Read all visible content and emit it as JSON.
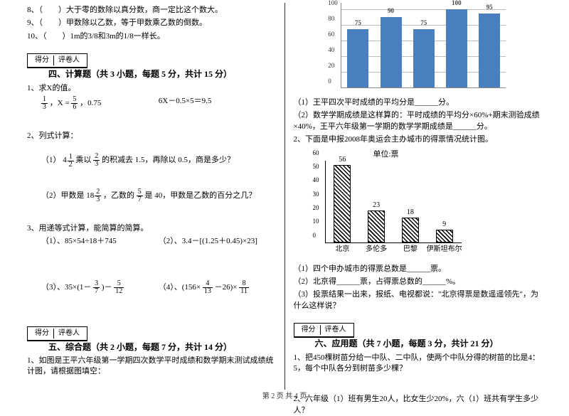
{
  "left": {
    "q8": "8、（　　）大于零的数除以真分数，商一定比这个数大。",
    "q9": "9、（　　）甲数除以乙数，等于甲数乘乙数的倒数。",
    "q10": "10、（　　）1m的3/8和3m的1/8一样长。",
    "sec4_title": "四、计算题（共 3 小题，每题 5 分，共计 15 分）",
    "s4_q1": "1、求X的值。",
    "s4_q1a_pre": "，X =",
    "s4_q1a_post": "，0.75",
    "s4_q1b": "6X－0.5×5＝9.5",
    "s4_q2": "2、列式计算：",
    "s4_q2_1a": "（1）",
    "s4_q2_1b": "乘以",
    "s4_q2_1c": "的积减去 1.5，再除以 0.5，商是多少？",
    "s4_q2_2a": "（2）甲数是",
    "s4_q2_2b": "，乙数的",
    "s4_q2_2c": "是 40，甲数是乙数的百分之几？",
    "s4_q3": "3、用递等式计算，能简算的简算。",
    "s4_q3_1": "（1）、85×54÷18＋745",
    "s4_q3_2": "（2）、3.4－[(1.25＋0.45)×23]",
    "s4_q3_3a": "（3）、35×(1－",
    "s4_q3_3b": ")－",
    "s4_q3_4a": "（4）、(156×",
    "s4_q3_4b": "－26)×",
    "sec5_title": "五、综合题（共 2 小题，每题 7 分，共计 14 分）",
    "s5_q1": "1、如图是王平六年级第一学期四次数学平时成绩和数学期末测试成绩统计图，请根据图填空：",
    "scorebox_a": "得分",
    "scorebox_b": "评卷人"
  },
  "right": {
    "chart1": {
      "values": [
        75,
        90,
        75,
        100,
        95
      ],
      "yticks": [
        0,
        20,
        40,
        60,
        80,
        100
      ],
      "ymax": 100,
      "bar_color": "#4a7fbf",
      "bg": "#ffffff"
    },
    "s5_q1_1": "（1）王平四次平时成绩的平均分是______分。",
    "s5_q1_2": "（2）数学学期成绩是这样算的：平时成绩的平均分×60%+期末测验成绩×40%，王平六年级第一学期的数学学期成绩是______分。",
    "s5_q2": "2、下面是申报2008年奥运会主办城市的得票情况统计图。",
    "chart2": {
      "title": "单位:票",
      "labels": [
        "北京",
        "多伦多",
        "巴黎",
        "伊斯坦布尔"
      ],
      "values": [
        56,
        23,
        18,
        9
      ],
      "ymax": 60,
      "yticks": [
        0,
        10,
        20,
        30,
        40,
        50,
        60
      ]
    },
    "s5_q2_1": "（1）四个申办城市的得票总数是______票。",
    "s5_q2_2": "（2）北京得______票，占得票总数的______%。",
    "s5_q2_3": "（3）投票结果一出来，报纸、电视都说：\"北京得票是数遥遥领先\"，为什么这样说？",
    "sec6_title": "六、应用题（共 7 小题，每题 3 分，共计 21 分）",
    "s6_q1": "1、把450棵树苗分给一中队、二中队，使两个中队分得的树苗的比是4：5，每个中队各分到树苗多少棵？",
    "s6_q2": "2、六年级（1）班有男生20人，比女生少20%，六（1）班共有学生多少人？"
  },
  "fractions": {
    "f1_3": {
      "n": "1",
      "d": "3"
    },
    "f5_6": {
      "n": "5",
      "d": "6"
    },
    "f4_1_2": {
      "w": "4",
      "n": "1",
      "d": "2"
    },
    "f2_3": {
      "n": "2",
      "d": "3"
    },
    "f18_2_3": {
      "w": "18",
      "n": "2",
      "d": "3"
    },
    "f5_7": {
      "n": "5",
      "d": "7"
    },
    "f3_7": {
      "n": "3",
      "d": "7"
    },
    "f5_12": {
      "n": "5",
      "d": "12"
    },
    "f4_13": {
      "n": "4",
      "d": "13"
    },
    "f8_11": {
      "n": "8",
      "d": "11"
    }
  },
  "footer": "第 2 页 共 4 页"
}
